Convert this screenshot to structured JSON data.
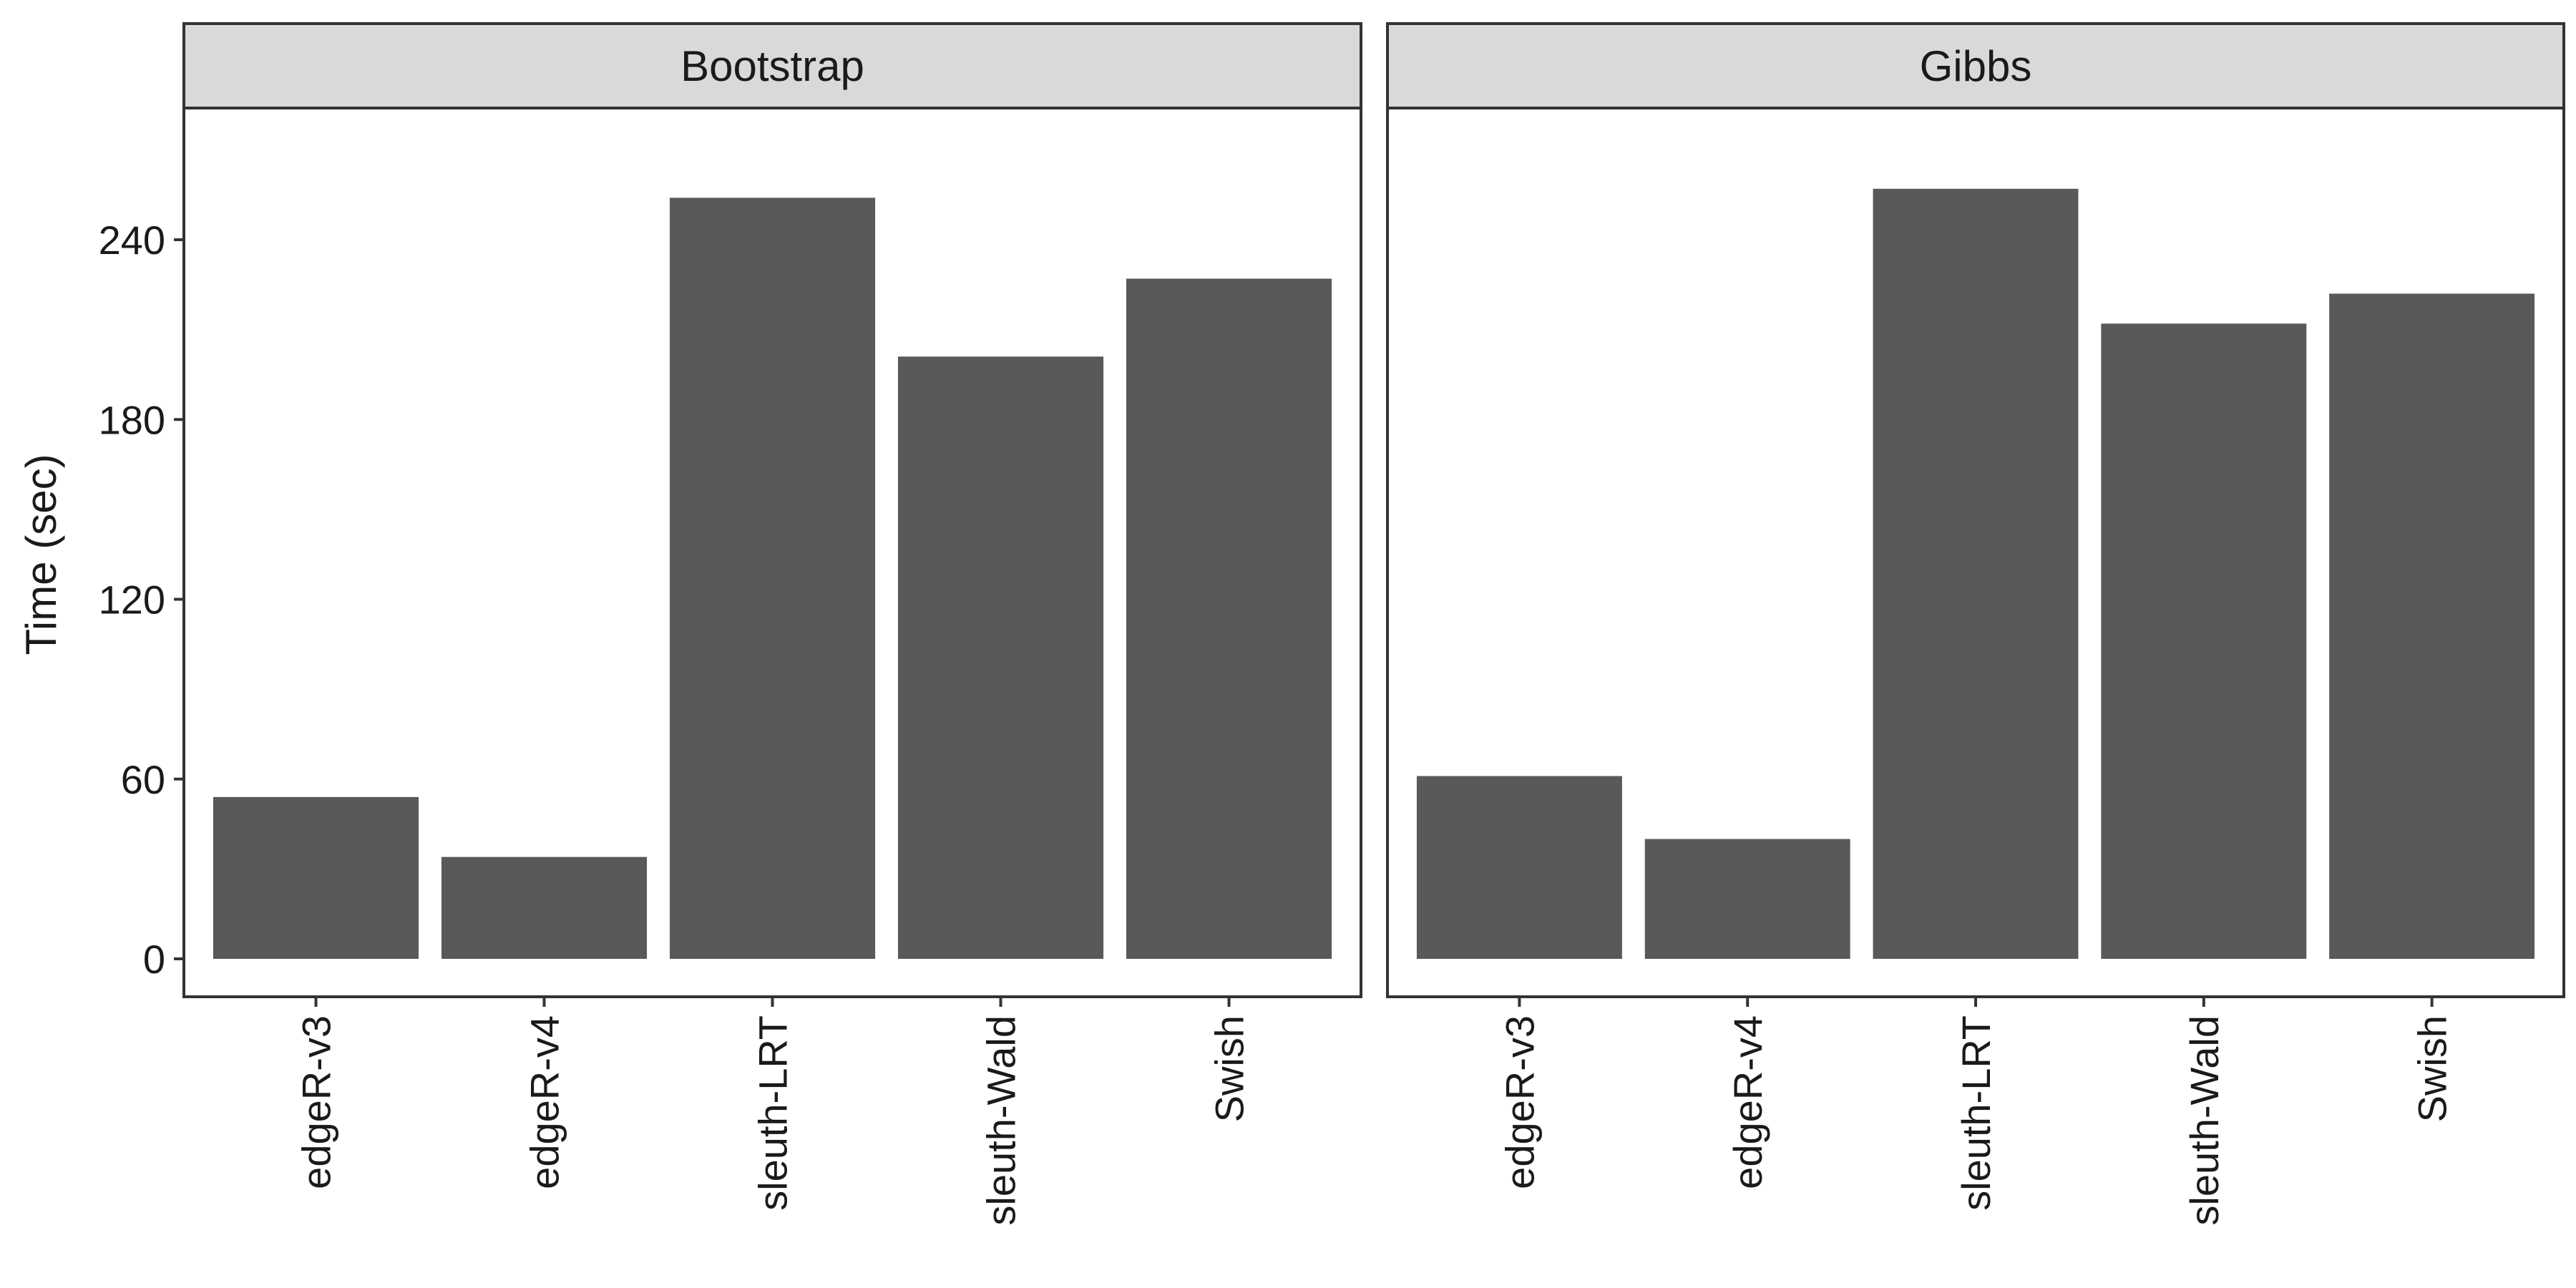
{
  "chart_data": {
    "type": "bar",
    "ylabel": "Time (sec)",
    "ylim": [
      0,
      280
    ],
    "yticks": [
      0,
      60,
      120,
      180,
      240
    ],
    "bar_color": "#595959",
    "strip_fill": "#d9d9d9",
    "panel_border": "#333333",
    "facets": [
      {
        "label": "Bootstrap",
        "categories": [
          "edgeR-v3",
          "edgeR-v4",
          "sleuth-LRT",
          "sleuth-Wald",
          "Swish"
        ],
        "values": [
          54,
          34,
          254,
          201,
          227
        ]
      },
      {
        "label": "Gibbs",
        "categories": [
          "edgeR-v3",
          "edgeR-v4",
          "sleuth-LRT",
          "sleuth-Wald",
          "Swish"
        ],
        "values": [
          61,
          40,
          257,
          212,
          222
        ]
      }
    ]
  }
}
